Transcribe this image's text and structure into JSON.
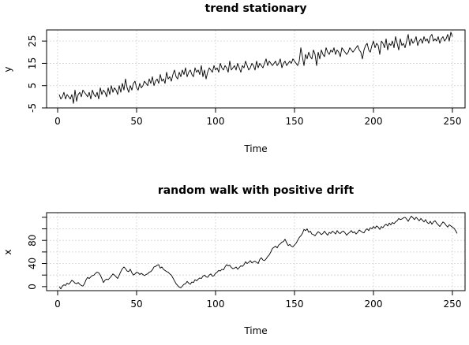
{
  "chart_data": [
    {
      "type": "line",
      "title": "trend stationary",
      "xlabel": "Time",
      "ylabel": "y",
      "xlim": [
        -7,
        258
      ],
      "ylim": [
        -5,
        30
      ],
      "xticks": [
        0,
        50,
        100,
        150,
        200,
        250
      ],
      "xtick_labels": [
        "0",
        "50",
        "100",
        "150",
        "200",
        "250"
      ],
      "yticks": [
        -5,
        5,
        15,
        25
      ],
      "ytick_labels": [
        "-5",
        "5",
        "15",
        "25"
      ],
      "grid": true,
      "series": [
        {
          "values": [
            1,
            -1,
            0,
            2,
            -1,
            1,
            0,
            -1,
            1,
            -3,
            3,
            -2,
            1,
            2,
            0,
            3,
            2,
            1,
            0,
            2,
            -1,
            3,
            1,
            0,
            2,
            -1,
            4,
            1,
            3,
            2,
            0,
            4,
            1,
            5,
            2,
            4,
            3,
            1,
            5,
            2,
            6,
            3,
            8,
            4,
            2,
            5,
            3,
            6,
            7,
            4,
            3,
            6,
            4,
            5,
            7,
            6,
            5,
            8,
            6,
            9,
            5,
            7,
            8,
            6,
            10,
            7,
            8,
            6,
            11,
            8,
            9,
            7,
            10,
            12,
            9,
            8,
            11,
            9,
            12,
            10,
            13,
            9,
            11,
            12,
            10,
            9,
            13,
            11,
            12,
            10,
            14,
            9,
            12,
            8,
            11,
            13,
            12,
            11,
            14,
            12,
            13,
            11,
            15,
            13,
            12,
            14,
            13,
            11,
            16,
            12,
            13,
            14,
            12,
            15,
            13,
            11,
            14,
            13,
            16,
            14,
            12,
            13,
            15,
            14,
            12,
            16,
            13,
            15,
            14,
            13,
            15,
            17,
            14,
            16,
            15,
            14,
            15,
            16,
            14,
            15,
            17,
            13,
            15,
            16,
            14,
            15,
            16,
            15,
            17,
            16,
            15,
            14,
            16,
            22,
            18,
            14,
            19,
            17,
            20,
            18,
            17,
            21,
            19,
            14,
            20,
            17,
            21,
            19,
            18,
            22,
            20,
            19,
            21,
            20,
            22,
            19,
            21,
            20,
            18,
            22,
            21,
            20,
            19,
            20,
            22,
            21,
            20,
            21,
            22,
            23,
            21,
            20,
            17,
            21,
            23,
            24,
            21,
            20,
            23,
            25,
            22,
            24,
            23,
            19,
            25,
            24,
            22,
            26,
            21,
            24,
            23,
            25,
            22,
            27,
            24,
            21,
            26,
            23,
            24,
            22,
            25,
            28,
            23,
            26,
            24,
            25,
            27,
            23,
            25,
            26,
            24,
            27,
            25,
            26,
            24,
            27,
            28,
            25,
            26,
            25,
            27,
            24,
            26,
            27,
            25,
            26,
            28,
            25,
            29,
            27
          ]
        }
      ]
    },
    {
      "type": "line",
      "title": "random walk with positive drift",
      "xlabel": "Time",
      "ylabel": "x",
      "xlim": [
        -7,
        258
      ],
      "ylim": [
        -7,
        128
      ],
      "xticks": [
        0,
        50,
        100,
        150,
        200,
        250
      ],
      "xtick_labels": [
        "0",
        "50",
        "100",
        "150",
        "200",
        "250"
      ],
      "yticks": [
        0,
        20,
        40,
        60,
        80,
        100,
        120
      ],
      "ytick_labels": [
        "0",
        "",
        "40",
        "",
        "80",
        "",
        ""
      ],
      "grid": true,
      "series": [
        {
          "values": [
            0,
            -4,
            1,
            3,
            2,
            6,
            4,
            7,
            11,
            9,
            6,
            5,
            7,
            4,
            2,
            1,
            5,
            12,
            16,
            14,
            17,
            19,
            20,
            23,
            25,
            24,
            20,
            14,
            7,
            11,
            13,
            12,
            15,
            18,
            22,
            20,
            17,
            14,
            20,
            26,
            31,
            34,
            31,
            27,
            26,
            30,
            24,
            20,
            22,
            25,
            24,
            21,
            23,
            21,
            19,
            21,
            22,
            25,
            26,
            29,
            34,
            35,
            37,
            38,
            32,
            34,
            30,
            28,
            26,
            25,
            22,
            20,
            15,
            10,
            5,
            2,
            -1,
            -2,
            1,
            4,
            5,
            9,
            6,
            4,
            8,
            7,
            12,
            10,
            13,
            15,
            14,
            18,
            20,
            17,
            16,
            20,
            22,
            18,
            19,
            23,
            25,
            28,
            27,
            30,
            29,
            34,
            38,
            36,
            37,
            33,
            31,
            32,
            34,
            30,
            33,
            36,
            35,
            38,
            43,
            40,
            42,
            45,
            41,
            43,
            44,
            42,
            40,
            47,
            50,
            46,
            45,
            48,
            52,
            55,
            60,
            66,
            68,
            70,
            67,
            72,
            74,
            77,
            78,
            82,
            76,
            71,
            73,
            70,
            69,
            72,
            75,
            80,
            85,
            88,
            92,
            99,
            97,
            100,
            94,
            96,
            91,
            90,
            88,
            92,
            95,
            93,
            90,
            92,
            96,
            92,
            89,
            94,
            92,
            96,
            94,
            91,
            97,
            93,
            92,
            95,
            96,
            93,
            89,
            92,
            94,
            97,
            93,
            95,
            91,
            94,
            98,
            96,
            94,
            93,
            98,
            100,
            97,
            102,
            100,
            104,
            101,
            105,
            103,
            99,
            104,
            102,
            106,
            108,
            105,
            110,
            107,
            111,
            109,
            112,
            114,
            118,
            116,
            117,
            119,
            120,
            117,
            113,
            118,
            122,
            119,
            116,
            120,
            117,
            114,
            118,
            115,
            112,
            116,
            111,
            109,
            113,
            108,
            112,
            114,
            110,
            107,
            104,
            108,
            112,
            110,
            106,
            103,
            107,
            105,
            103,
            101,
            97,
            92
          ]
        }
      ]
    }
  ]
}
